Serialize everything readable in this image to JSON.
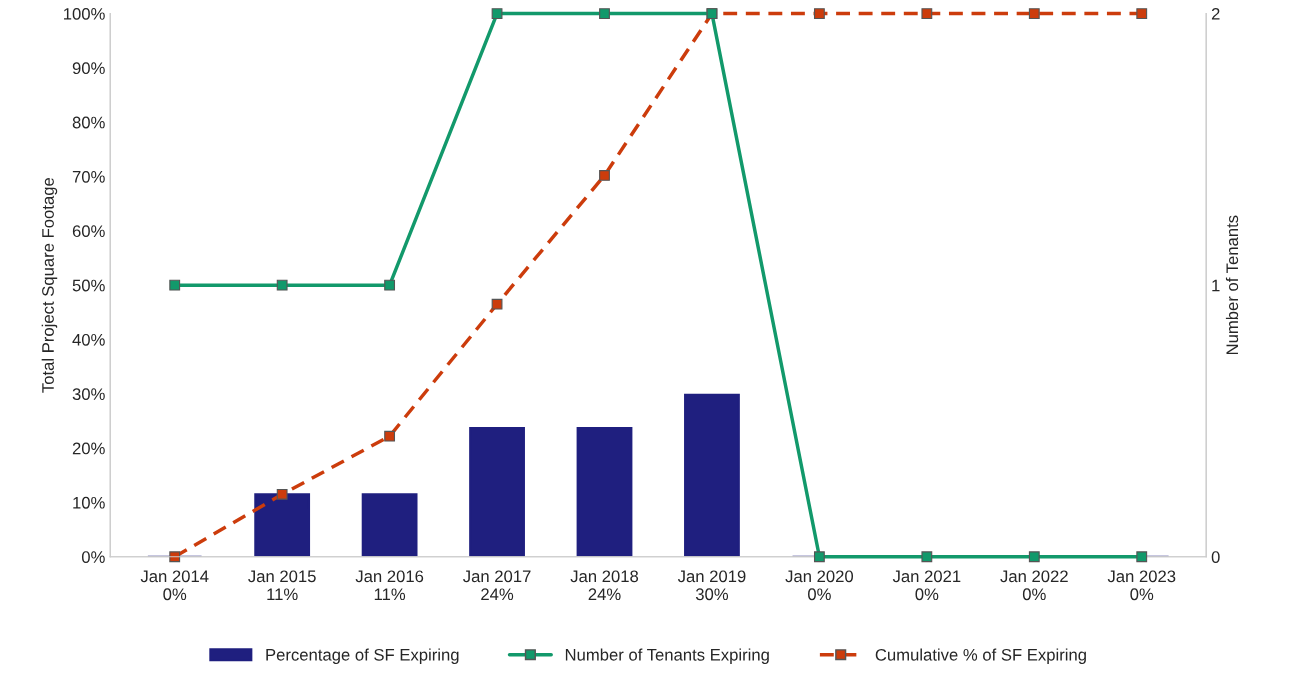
{
  "chart_data": {
    "type": "bar",
    "ylabel": "Total Project Square Footage",
    "y2label": "Number of Tenants",
    "categories": [
      "Jan 2014",
      "Jan 2015",
      "Jan 2016",
      "Jan 2017",
      "Jan 2018",
      "Jan 2019",
      "Jan 2020",
      "Jan 2021",
      "Jan 2022",
      "Jan 2023"
    ],
    "series": [
      {
        "name": "Percentage of SF Expiring",
        "color": "#1f1f7f",
        "values": [
          0,
          11.5,
          11.5,
          23.7,
          23.7,
          29.8,
          0,
          0,
          0,
          0
        ],
        "value_labels": [
          "0%",
          "11%",
          "11%",
          "24%",
          "24%",
          "30%",
          "0%",
          "0%",
          "0%",
          "0%"
        ]
      },
      {
        "name": "Number of Tenants Expiring",
        "type": "line",
        "axis": "y2",
        "color": "#12996b",
        "marker": "square",
        "line_style": "solid",
        "values": [
          1,
          1,
          1,
          2,
          2,
          2,
          0,
          0,
          0,
          0
        ]
      },
      {
        "name": "Cumulative % of SF Expiring",
        "type": "line",
        "color": "#cc3c0c",
        "marker": "square",
        "line_style": "dashed",
        "values": [
          0,
          11.5,
          22.2,
          46.5,
          70.2,
          100,
          100,
          100,
          100,
          100
        ]
      }
    ],
    "ylim": [
      0,
      100
    ],
    "yticks": [
      {
        "value": 0,
        "label": "0%"
      },
      {
        "value": 10,
        "label": "10%"
      },
      {
        "value": 20,
        "label": "20%"
      },
      {
        "value": 30,
        "label": "30%"
      },
      {
        "value": 40,
        "label": "40%"
      },
      {
        "value": 50,
        "label": "50%"
      },
      {
        "value": 60,
        "label": "60%"
      },
      {
        "value": 70,
        "label": "70%"
      },
      {
        "value": 80,
        "label": "80%"
      },
      {
        "value": 90,
        "label": "90%"
      },
      {
        "value": 100,
        "label": "100%"
      }
    ],
    "y2lim": [
      0,
      2
    ],
    "y2ticks": [
      0,
      1,
      2
    ],
    "grid": false,
    "legend": "bottom"
  }
}
